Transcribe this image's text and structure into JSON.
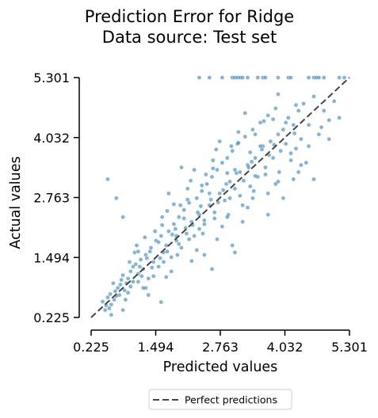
{
  "chart_data": {
    "type": "scatter",
    "title": "Prediction Error for Ridge",
    "subtitle": "Data source: Test set",
    "xlabel": "Predicted values",
    "ylabel": "Actual values",
    "xlim": [
      0.225,
      5.301
    ],
    "ylim": [
      0.225,
      5.301
    ],
    "xticks": [
      "0.225",
      "1.494",
      "2.763",
      "4.032",
      "5.301"
    ],
    "yticks": [
      "0.225",
      "1.494",
      "2.763",
      "4.032",
      "5.301"
    ],
    "grid": false,
    "legend_position": "below-center",
    "legend": [
      {
        "label": "Perfect predictions",
        "style": "dashed",
        "color": "#444444"
      }
    ],
    "reference_line": {
      "name": "Perfect predictions",
      "x": [
        0.225,
        5.301
      ],
      "y": [
        0.225,
        5.301
      ]
    },
    "point_color": "#1f77b4",
    "series": [
      {
        "points": [
          [
            0.45,
            0.56
          ],
          [
            0.52,
            0.48
          ],
          [
            0.6,
            0.72
          ],
          [
            0.68,
            0.6
          ],
          [
            0.75,
            0.85
          ],
          [
            0.55,
            0.65
          ],
          [
            0.62,
            0.5
          ],
          [
            0.7,
            0.78
          ],
          [
            0.8,
            0.92
          ],
          [
            0.88,
            0.8
          ],
          [
            0.95,
            1.05
          ],
          [
            0.78,
            0.7
          ],
          [
            0.85,
            1.12
          ],
          [
            0.92,
            0.95
          ],
          [
            1.0,
            1.2
          ],
          [
            1.05,
            0.98
          ],
          [
            1.1,
            1.35
          ],
          [
            1.15,
            1.15
          ],
          [
            1.2,
            1.45
          ],
          [
            1.0,
            0.88
          ],
          [
            1.08,
            1.6
          ],
          [
            1.18,
            1.3
          ],
          [
            1.25,
            1.25
          ],
          [
            1.3,
            1.55
          ],
          [
            1.35,
            1.05
          ],
          [
            1.4,
            1.7
          ],
          [
            1.45,
            1.4
          ],
          [
            1.5,
            1.85
          ],
          [
            1.55,
            1.3
          ],
          [
            1.6,
            1.95
          ],
          [
            1.65,
            1.6
          ],
          [
            1.7,
            1.75
          ],
          [
            1.75,
            2.05
          ],
          [
            1.8,
            1.5
          ],
          [
            1.85,
            2.2
          ],
          [
            1.9,
            1.85
          ],
          [
            1.95,
            2.35
          ],
          [
            2.0,
            1.7
          ],
          [
            2.05,
            2.5
          ],
          [
            2.1,
            2.0
          ],
          [
            2.15,
            2.65
          ],
          [
            2.2,
            2.25
          ],
          [
            2.25,
            1.95
          ],
          [
            2.3,
            2.75
          ],
          [
            2.35,
            2.4
          ],
          [
            2.4,
            2.9
          ],
          [
            2.45,
            2.2
          ],
          [
            2.5,
            3.05
          ],
          [
            2.55,
            2.6
          ],
          [
            2.6,
            3.2
          ],
          [
            2.65,
            2.45
          ],
          [
            2.7,
            3.35
          ],
          [
            2.75,
            2.85
          ],
          [
            2.8,
            3.5
          ],
          [
            2.85,
            2.7
          ],
          [
            2.9,
            3.6
          ],
          [
            2.95,
            3.1
          ],
          [
            3.0,
            3.75
          ],
          [
            3.05,
            2.95
          ],
          [
            3.1,
            3.9
          ],
          [
            3.15,
            3.3
          ],
          [
            3.2,
            2.6
          ],
          [
            3.25,
            4.05
          ],
          [
            3.3,
            3.45
          ],
          [
            3.35,
            3.0
          ],
          [
            3.4,
            4.2
          ],
          [
            3.45,
            3.6
          ],
          [
            3.5,
            3.2
          ],
          [
            3.55,
            4.35
          ],
          [
            3.6,
            3.85
          ],
          [
            3.65,
            3.4
          ],
          [
            3.7,
            4.5
          ],
          [
            3.75,
            3.95
          ],
          [
            3.8,
            3.6
          ],
          [
            3.85,
            4.65
          ],
          [
            3.9,
            4.1
          ],
          [
            3.95,
            3.75
          ],
          [
            4.0,
            4.2
          ],
          [
            4.05,
            3.9
          ],
          [
            4.1,
            4.45
          ],
          [
            4.15,
            3.55
          ],
          [
            4.2,
            4.3
          ],
          [
            4.25,
            3.8
          ],
          [
            4.3,
            4.6
          ],
          [
            4.35,
            4.0
          ],
          [
            4.4,
            4.75
          ],
          [
            4.5,
            4.3
          ],
          [
            4.6,
            4.9
          ],
          [
            4.7,
            4.1
          ],
          [
            4.8,
            4.6
          ],
          [
            4.9,
            4.4
          ],
          [
            5.0,
            4.8
          ],
          [
            4.45,
            3.5
          ],
          [
            3.9,
            3.1
          ],
          [
            3.3,
            2.55
          ],
          [
            2.8,
            2.15
          ],
          [
            2.3,
            1.65
          ],
          [
            1.8,
            1.2
          ],
          [
            1.3,
            0.85
          ],
          [
            0.9,
            0.6
          ],
          [
            0.58,
            0.42
          ],
          [
            0.66,
            0.95
          ],
          [
            1.12,
            1.75
          ],
          [
            1.62,
            2.35
          ],
          [
            2.12,
            2.95
          ],
          [
            2.62,
            3.55
          ],
          [
            3.12,
            4.15
          ],
          [
            1.28,
            1.92
          ],
          [
            1.72,
            2.48
          ],
          [
            2.18,
            3.12
          ],
          [
            2.68,
            3.78
          ],
          [
            1.45,
            1.1
          ],
          [
            1.92,
            1.55
          ],
          [
            2.42,
            2.0
          ],
          [
            2.92,
            2.4
          ],
          [
            3.42,
            2.9
          ],
          [
            3.92,
            3.3
          ],
          [
            1.58,
            1.48
          ],
          [
            2.08,
            2.12
          ],
          [
            2.58,
            2.72
          ],
          [
            3.08,
            3.28
          ],
          [
            3.58,
            3.78
          ],
          [
            0.98,
            1.4
          ],
          [
            1.48,
            2.05
          ],
          [
            1.98,
            2.6
          ],
          [
            2.48,
            3.25
          ],
          [
            2.98,
            3.85
          ],
          [
            0.72,
            0.68
          ],
          [
            1.22,
            1.1
          ],
          [
            1.72,
            1.62
          ],
          [
            2.22,
            2.18
          ],
          [
            2.72,
            2.66
          ],
          [
            3.22,
            3.12
          ],
          [
            3.72,
            3.66
          ],
          [
            4.22,
            4.12
          ],
          [
            1.38,
            1.62
          ],
          [
            1.88,
            2.1
          ],
          [
            2.38,
            2.58
          ],
          [
            2.88,
            3.05
          ],
          [
            3.38,
            3.52
          ],
          [
            0.82,
            1.02
          ],
          [
            1.32,
            1.48
          ],
          [
            1.82,
            1.98
          ],
          [
            2.32,
            2.45
          ],
          [
            2.82,
            2.92
          ],
          [
            3.32,
            3.4
          ],
          [
            3.82,
            3.88
          ],
          [
            1.15,
            0.98
          ],
          [
            1.65,
            1.4
          ],
          [
            2.15,
            1.88
          ],
          [
            2.65,
            2.32
          ],
          [
            3.15,
            2.8
          ],
          [
            3.65,
            3.25
          ],
          [
            4.15,
            3.7
          ],
          [
            0.95,
            0.75
          ],
          [
            1.42,
            1.28
          ],
          [
            1.95,
            1.78
          ],
          [
            2.45,
            2.28
          ],
          [
            2.95,
            2.75
          ],
          [
            3.45,
            3.22
          ],
          [
            1.05,
            1.3
          ],
          [
            1.55,
            1.82
          ],
          [
            2.05,
            2.32
          ],
          [
            2.55,
            2.85
          ],
          [
            3.05,
            3.35
          ],
          [
            3.55,
            3.85
          ],
          [
            4.05,
            4.35
          ],
          [
            2.25,
            3.35
          ],
          [
            2.75,
            3.95
          ],
          [
            3.25,
            4.55
          ],
          [
            1.75,
            2.85
          ],
          [
            2.0,
            3.4
          ],
          [
            3.45,
            4.1
          ],
          [
            3.9,
            4.95
          ],
          [
            0.55,
            3.15
          ],
          [
            0.72,
            2.75
          ],
          [
            0.85,
            2.35
          ],
          [
            1.6,
            0.55
          ],
          [
            1.35,
            0.7
          ],
          [
            2.45,
            1.55
          ],
          [
            3.0,
            1.75
          ],
          [
            4.0,
            2.75
          ],
          [
            4.35,
            3.45
          ],
          [
            4.6,
            3.15
          ],
          [
            3.05,
            1.6
          ],
          [
            2.6,
            1.25
          ],
          [
            3.7,
            2.4
          ],
          [
            4.9,
            4.0
          ],
          [
            5.1,
            4.45
          ],
          [
            4.75,
            4.25
          ],
          [
            4.5,
            3.85
          ],
          [
            0.62,
            0.28
          ],
          [
            0.85,
            0.38
          ],
          [
            0.5,
            0.38
          ],
          [
            1.25,
            0.85
          ],
          [
            1.9,
            1.95
          ],
          [
            2.35,
            2.1
          ],
          [
            2.9,
            2.35
          ],
          [
            3.4,
            2.75
          ],
          [
            3.85,
            3.05
          ],
          [
            4.3,
            3.3
          ],
          [
            1.7,
            1.08
          ],
          [
            2.2,
            1.42
          ],
          [
            2.7,
            1.88
          ],
          [
            3.2,
            2.25
          ],
          [
            3.7,
            2.85
          ],
          [
            4.2,
            3.15
          ],
          [
            1.85,
            2.62
          ],
          [
            2.4,
            3.02
          ],
          [
            2.9,
            3.28
          ],
          [
            3.35,
            3.72
          ],
          [
            3.8,
            4.42
          ],
          [
            4.25,
            4.72
          ],
          [
            1.15,
            1.62
          ],
          [
            1.62,
            2.18
          ],
          [
            2.12,
            2.72
          ],
          [
            2.62,
            3.38
          ],
          [
            3.12,
            3.92
          ],
          [
            3.62,
            4.38
          ],
          [
            2.8,
            5.301
          ],
          [
            3.0,
            5.301
          ],
          [
            3.05,
            5.301
          ],
          [
            3.1,
            5.301
          ],
          [
            3.15,
            5.301
          ],
          [
            3.2,
            5.301
          ],
          [
            3.3,
            5.301
          ],
          [
            3.5,
            5.301
          ],
          [
            3.6,
            5.301
          ],
          [
            3.65,
            5.301
          ],
          [
            3.9,
            5.301
          ],
          [
            4.1,
            5.301
          ],
          [
            4.15,
            5.301
          ],
          [
            4.5,
            5.301
          ],
          [
            4.6,
            5.301
          ],
          [
            4.65,
            5.301
          ],
          [
            4.7,
            5.301
          ],
          [
            4.8,
            5.301
          ],
          [
            5.1,
            5.301
          ],
          [
            5.2,
            5.301
          ],
          [
            2.35,
            5.301
          ],
          [
            2.55,
            5.301
          ]
        ]
      }
    ]
  }
}
